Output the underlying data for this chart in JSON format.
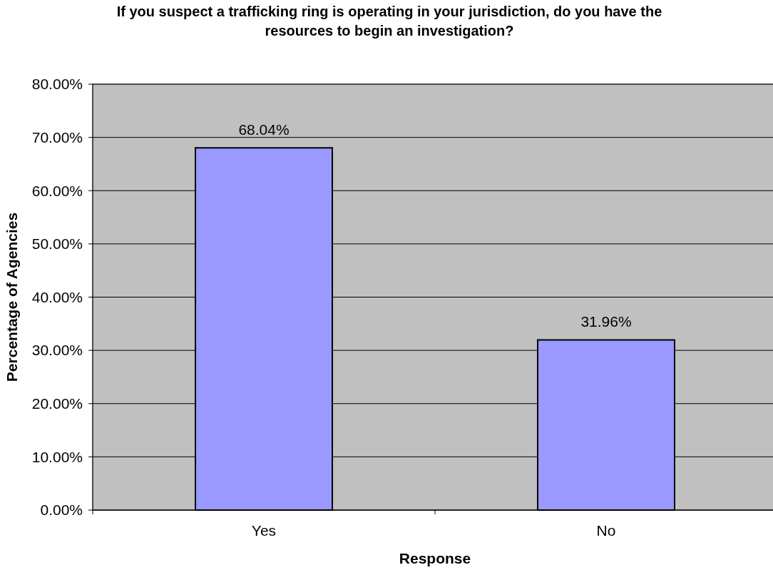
{
  "chart_data": {
    "type": "bar",
    "title": "If you suspect a trafficking ring is operating in your jurisdiction, do you have the resources to begin an investigation?",
    "xlabel": "Response",
    "ylabel": "Percentage of Agencies",
    "categories": [
      "Yes",
      "No"
    ],
    "values": [
      68.04,
      31.96
    ],
    "color": "#9999ff",
    "value_labels": [
      "68.04%",
      "31.96%"
    ],
    "ylim": [
      0,
      80
    ],
    "yticks": [
      {
        "value": 0,
        "label": "0.00%"
      },
      {
        "value": 10,
        "label": "10.00%"
      },
      {
        "value": 20,
        "label": "20.00%"
      },
      {
        "value": 30,
        "label": "30.00%"
      },
      {
        "value": 40,
        "label": "40.00%"
      },
      {
        "value": 50,
        "label": "50.00%"
      },
      {
        "value": 60,
        "label": "60.00%"
      },
      {
        "value": 70,
        "label": "70.00%"
      },
      {
        "value": 80,
        "label": "80.00%"
      }
    ],
    "grid": "y"
  }
}
